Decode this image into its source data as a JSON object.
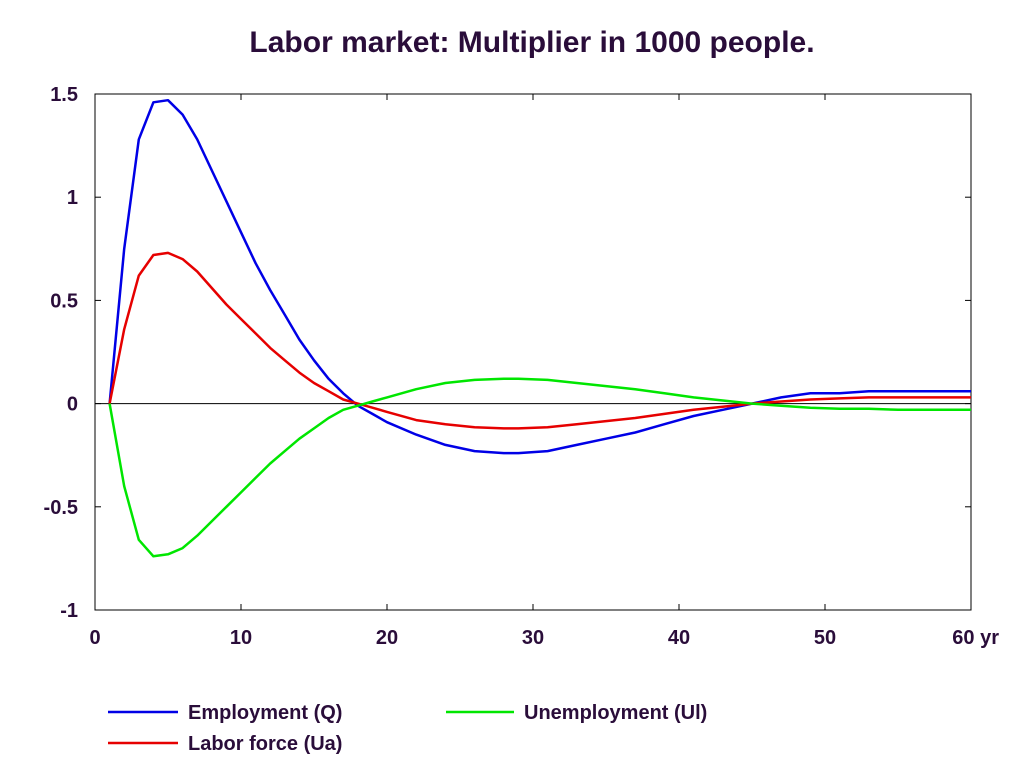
{
  "chart_data": {
    "type": "line",
    "title": "Labor market: Multiplier in 1000 people.",
    "xlabel": "",
    "ylabel": "",
    "x_unit_label": "yr",
    "xlim": [
      0,
      60
    ],
    "ylim": [
      -1,
      1.5
    ],
    "xticks": [
      0,
      10,
      20,
      30,
      40,
      50,
      60
    ],
    "xtick_labels": [
      "0",
      "10",
      "20",
      "30",
      "40",
      "50",
      "60 yr"
    ],
    "yticks": [
      -1,
      -0.5,
      0,
      0.5,
      1,
      1.5
    ],
    "ytick_labels": [
      "-1",
      "-0.5",
      "0",
      "0.5",
      "1",
      "1.5"
    ],
    "grid": false,
    "zero_line": true,
    "legend_position": "bottom",
    "series": [
      {
        "name": "Employment (Q)",
        "color": "#0000e6",
        "x": [
          1,
          2,
          3,
          4,
          5,
          6,
          7,
          8,
          9,
          10,
          11,
          12,
          13,
          14,
          15,
          16,
          17,
          18,
          19,
          20,
          22,
          24,
          26,
          28,
          29,
          31,
          33,
          35,
          37,
          39,
          41,
          43,
          45,
          47,
          49,
          51,
          53,
          55,
          57,
          60
        ],
        "y": [
          0,
          0.75,
          1.28,
          1.46,
          1.47,
          1.4,
          1.28,
          1.13,
          0.98,
          0.83,
          0.68,
          0.55,
          0.43,
          0.31,
          0.21,
          0.12,
          0.05,
          -0.01,
          -0.05,
          -0.09,
          -0.15,
          -0.2,
          -0.23,
          -0.24,
          -0.24,
          -0.23,
          -0.2,
          -0.17,
          -0.14,
          -0.1,
          -0.06,
          -0.03,
          0.0,
          0.03,
          0.05,
          0.05,
          0.06,
          0.06,
          0.06,
          0.06
        ]
      },
      {
        "name": "Labor force (Ua)",
        "color": "#e60000",
        "x": [
          1,
          2,
          3,
          4,
          5,
          6,
          7,
          8,
          9,
          10,
          11,
          12,
          13,
          14,
          15,
          16,
          17,
          18,
          19,
          20,
          22,
          24,
          26,
          28,
          29,
          31,
          33,
          35,
          37,
          39,
          41,
          43,
          45,
          47,
          49,
          51,
          53,
          55,
          57,
          60
        ],
        "y": [
          0,
          0.36,
          0.62,
          0.72,
          0.73,
          0.7,
          0.64,
          0.56,
          0.48,
          0.41,
          0.34,
          0.27,
          0.21,
          0.15,
          0.1,
          0.06,
          0.02,
          0.0,
          -0.02,
          -0.04,
          -0.08,
          -0.1,
          -0.115,
          -0.12,
          -0.12,
          -0.115,
          -0.1,
          -0.085,
          -0.07,
          -0.05,
          -0.03,
          -0.015,
          0.0,
          0.01,
          0.02,
          0.025,
          0.03,
          0.03,
          0.03,
          0.03
        ]
      },
      {
        "name": "Unemployment (Ul)",
        "color": "#00e600",
        "x": [
          1,
          2,
          3,
          4,
          5,
          6,
          7,
          8,
          9,
          10,
          11,
          12,
          13,
          14,
          15,
          16,
          17,
          18,
          19,
          20,
          22,
          24,
          26,
          28,
          29,
          31,
          33,
          35,
          37,
          39,
          41,
          43,
          45,
          47,
          49,
          51,
          53,
          55,
          57,
          60
        ],
        "y": [
          0,
          -0.4,
          -0.66,
          -0.74,
          -0.73,
          -0.7,
          -0.64,
          -0.57,
          -0.5,
          -0.43,
          -0.36,
          -0.29,
          -0.23,
          -0.17,
          -0.12,
          -0.07,
          -0.03,
          -0.01,
          0.01,
          0.03,
          0.07,
          0.1,
          0.115,
          0.12,
          0.12,
          0.115,
          0.1,
          0.085,
          0.07,
          0.05,
          0.03,
          0.015,
          0.0,
          -0.01,
          -0.02,
          -0.025,
          -0.025,
          -0.03,
          -0.03,
          -0.03
        ]
      }
    ]
  }
}
